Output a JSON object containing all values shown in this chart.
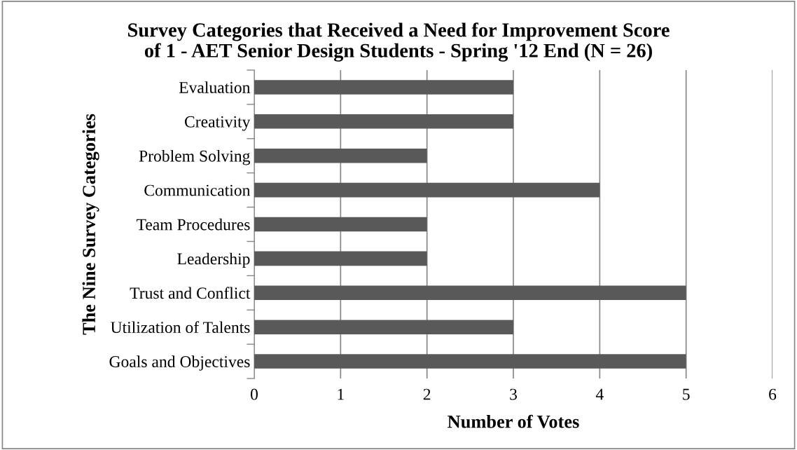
{
  "chart_data": {
    "type": "bar",
    "orientation": "horizontal",
    "title": "Survey Categories that Received a Need for Improvement Score\nof 1 - AET Senior Design Students - Spring '12 End (N = 26)",
    "xlabel": "Number of Votes",
    "ylabel": "The Nine Survey Categories",
    "categories": [
      "Evaluation",
      "Creativity",
      "Problem Solving",
      "Communication",
      "Team Procedures",
      "Leadership",
      "Trust and Conflict",
      "Utilization of Talents",
      "Goals and Objectives"
    ],
    "values": [
      3,
      3,
      2,
      4,
      2,
      2,
      5,
      3,
      5
    ],
    "color": "#595959",
    "xlim": [
      0,
      6
    ],
    "xticks": [
      0,
      1,
      2,
      3,
      4,
      5,
      6
    ],
    "grid": "x",
    "legend": false
  }
}
